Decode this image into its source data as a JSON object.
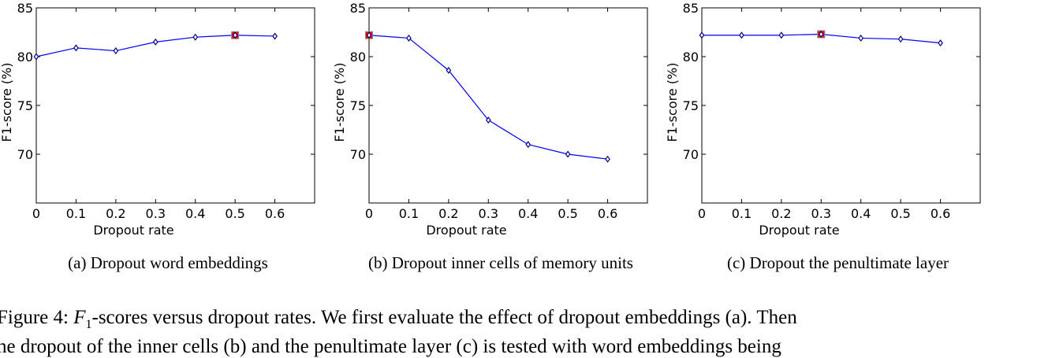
{
  "chart_data": [
    {
      "type": "line",
      "x": [
        0,
        0.1,
        0.2,
        0.3,
        0.4,
        0.5,
        0.6
      ],
      "series": [
        {
          "values": [
            80.0,
            80.9,
            80.6,
            81.5,
            82.0,
            82.2,
            82.1
          ]
        }
      ],
      "highlight_x": 0.5,
      "xlabel": "Dropout rate",
      "ylabel": "F1-score (%)",
      "xlim": [
        0,
        0.7
      ],
      "ylim": [
        65,
        85
      ],
      "xticks": [
        "0",
        "0.1",
        "0.2",
        "0.3",
        "0.4",
        "0.5",
        "0.6"
      ],
      "yticks": [
        "70",
        "75",
        "80",
        "85"
      ],
      "grid": false
    },
    {
      "type": "line",
      "x": [
        0,
        0.1,
        0.2,
        0.3,
        0.4,
        0.5,
        0.6
      ],
      "series": [
        {
          "values": [
            82.2,
            81.9,
            78.6,
            73.5,
            71.0,
            70.0,
            69.5
          ]
        }
      ],
      "highlight_x": 0,
      "xlabel": "Dropout rate",
      "ylabel": "F1-score (%)",
      "xlim": [
        0,
        0.7
      ],
      "ylim": [
        65,
        85
      ],
      "xticks": [
        "0",
        "0.1",
        "0.2",
        "0.3",
        "0.4",
        "0.5",
        "0.6"
      ],
      "yticks": [
        "70",
        "75",
        "80",
        "85"
      ],
      "grid": false
    },
    {
      "type": "line",
      "x": [
        0,
        0.1,
        0.2,
        0.3,
        0.4,
        0.5,
        0.6
      ],
      "series": [
        {
          "values": [
            82.2,
            82.2,
            82.2,
            82.3,
            81.9,
            81.8,
            81.4
          ]
        }
      ],
      "highlight_x": 0.3,
      "xlabel": "Dropout rate",
      "ylabel": "F1-score (%)",
      "xlim": [
        0,
        0.7
      ],
      "ylim": [
        65,
        85
      ],
      "xticks": [
        "0",
        "0.1",
        "0.2",
        "0.3",
        "0.4",
        "0.5",
        "0.6"
      ],
      "yticks": [
        "70",
        "75",
        "80",
        "85"
      ],
      "grid": false
    }
  ],
  "captions": [
    "(a)  Dropout word embeddings",
    "(b)  Dropout inner cells of memory units",
    "(c)  Dropout the penultimate layer"
  ],
  "figure_caption": {
    "label": "Figure 4:",
    "line1": "-scores versus dropout rates. We first evaluate the effect of dropout embeddings (a). Then",
    "line2": "he dropout of the inner cells (b) and the penultimate layer (c) is tested with word embeddings being"
  },
  "colors": {
    "line": "#0000ff",
    "highlight": "#ff0000",
    "axis": "#000000"
  }
}
